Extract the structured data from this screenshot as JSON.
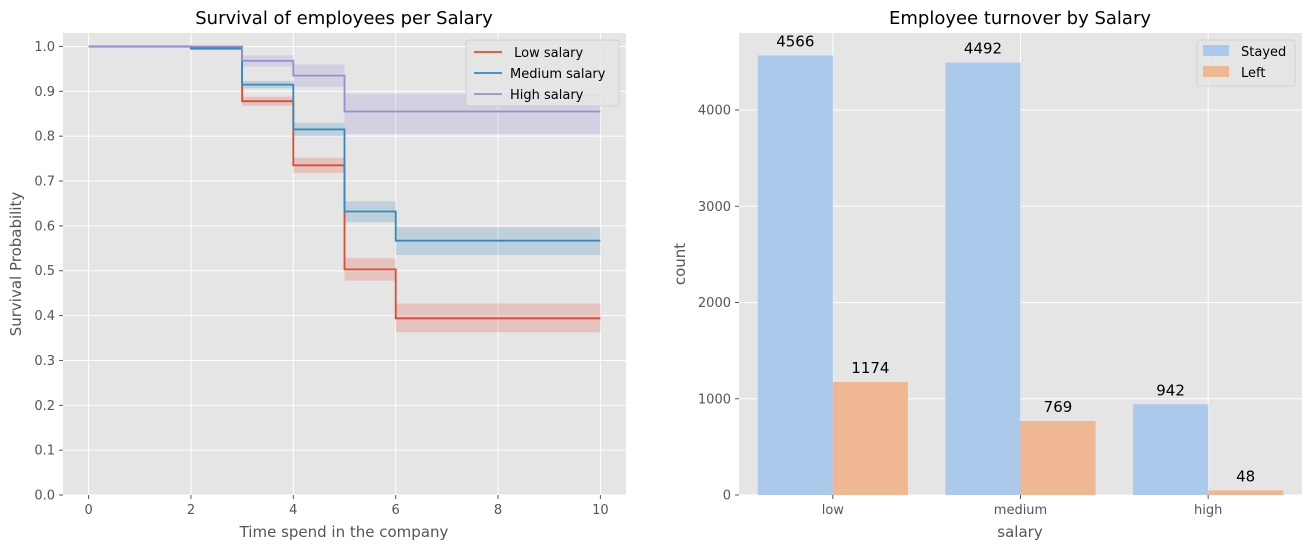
{
  "chart_data": [
    {
      "type": "line",
      "subtype": "step-survival",
      "title": "Survival of employees per Salary",
      "xlabel": "Time spend in the company",
      "ylabel": "Survival Probability",
      "xlim": [
        -0.5,
        10.5
      ],
      "ylim": [
        0,
        1.03
      ],
      "xticks": [
        0,
        2,
        4,
        6,
        8,
        10
      ],
      "yticks": [
        0.0,
        0.1,
        0.2,
        0.3,
        0.4,
        0.5,
        0.6,
        0.7,
        0.8,
        0.9,
        1.0
      ],
      "grid": true,
      "legend_position": "top-right",
      "series": [
        {
          "name": " Low salary",
          "color": "#E24A33",
          "x": [
            0,
            2,
            3,
            4,
            5,
            6,
            10
          ],
          "y": [
            1.0,
            0.997,
            0.878,
            0.735,
            0.503,
            0.394,
            0.394
          ],
          "ci_lower": [
            1.0,
            0.995,
            0.868,
            0.718,
            0.478,
            0.363,
            0.363
          ],
          "ci_upper": [
            1.0,
            0.999,
            0.888,
            0.752,
            0.528,
            0.427,
            0.427
          ]
        },
        {
          "name": "Medium salary",
          "color": "#348ABD",
          "x": [
            0,
            2,
            3,
            4,
            5,
            6,
            10
          ],
          "y": [
            1.0,
            0.995,
            0.915,
            0.815,
            0.632,
            0.567,
            0.567
          ],
          "ci_lower": [
            1.0,
            0.993,
            0.907,
            0.8,
            0.608,
            0.535,
            0.535
          ],
          "ci_upper": [
            1.0,
            0.997,
            0.923,
            0.83,
            0.655,
            0.597,
            0.597
          ]
        },
        {
          "name": "High salary",
          "color": "#988ED5",
          "x": [
            0,
            2,
            3,
            4,
            5,
            6,
            10
          ],
          "y": [
            1.0,
            1.0,
            0.968,
            0.935,
            0.855,
            0.855,
            0.855
          ],
          "ci_lower": [
            1.0,
            1.0,
            0.955,
            0.91,
            0.805,
            0.805,
            0.805
          ],
          "ci_upper": [
            1.0,
            1.0,
            0.98,
            0.96,
            0.895,
            0.895,
            0.895
          ]
        }
      ]
    },
    {
      "type": "bar",
      "title": "Employee turnover by Salary",
      "xlabel": "salary",
      "ylabel": "count",
      "categories": [
        "low",
        "medium",
        "high"
      ],
      "ylim": [
        0,
        4800
      ],
      "yticks": [
        0,
        1000,
        2000,
        3000,
        4000
      ],
      "grid": true,
      "legend_position": "top-right",
      "series": [
        {
          "name": "Stayed",
          "color": "#ABC9EA",
          "values": [
            4566,
            4492,
            942
          ]
        },
        {
          "name": "Left",
          "color": "#EFB792",
          "values": [
            1174,
            769,
            48
          ]
        }
      ],
      "data_labels": [
        [
          "4566",
          "4492",
          "942"
        ],
        [
          "1174",
          "769",
          "48"
        ]
      ]
    }
  ]
}
